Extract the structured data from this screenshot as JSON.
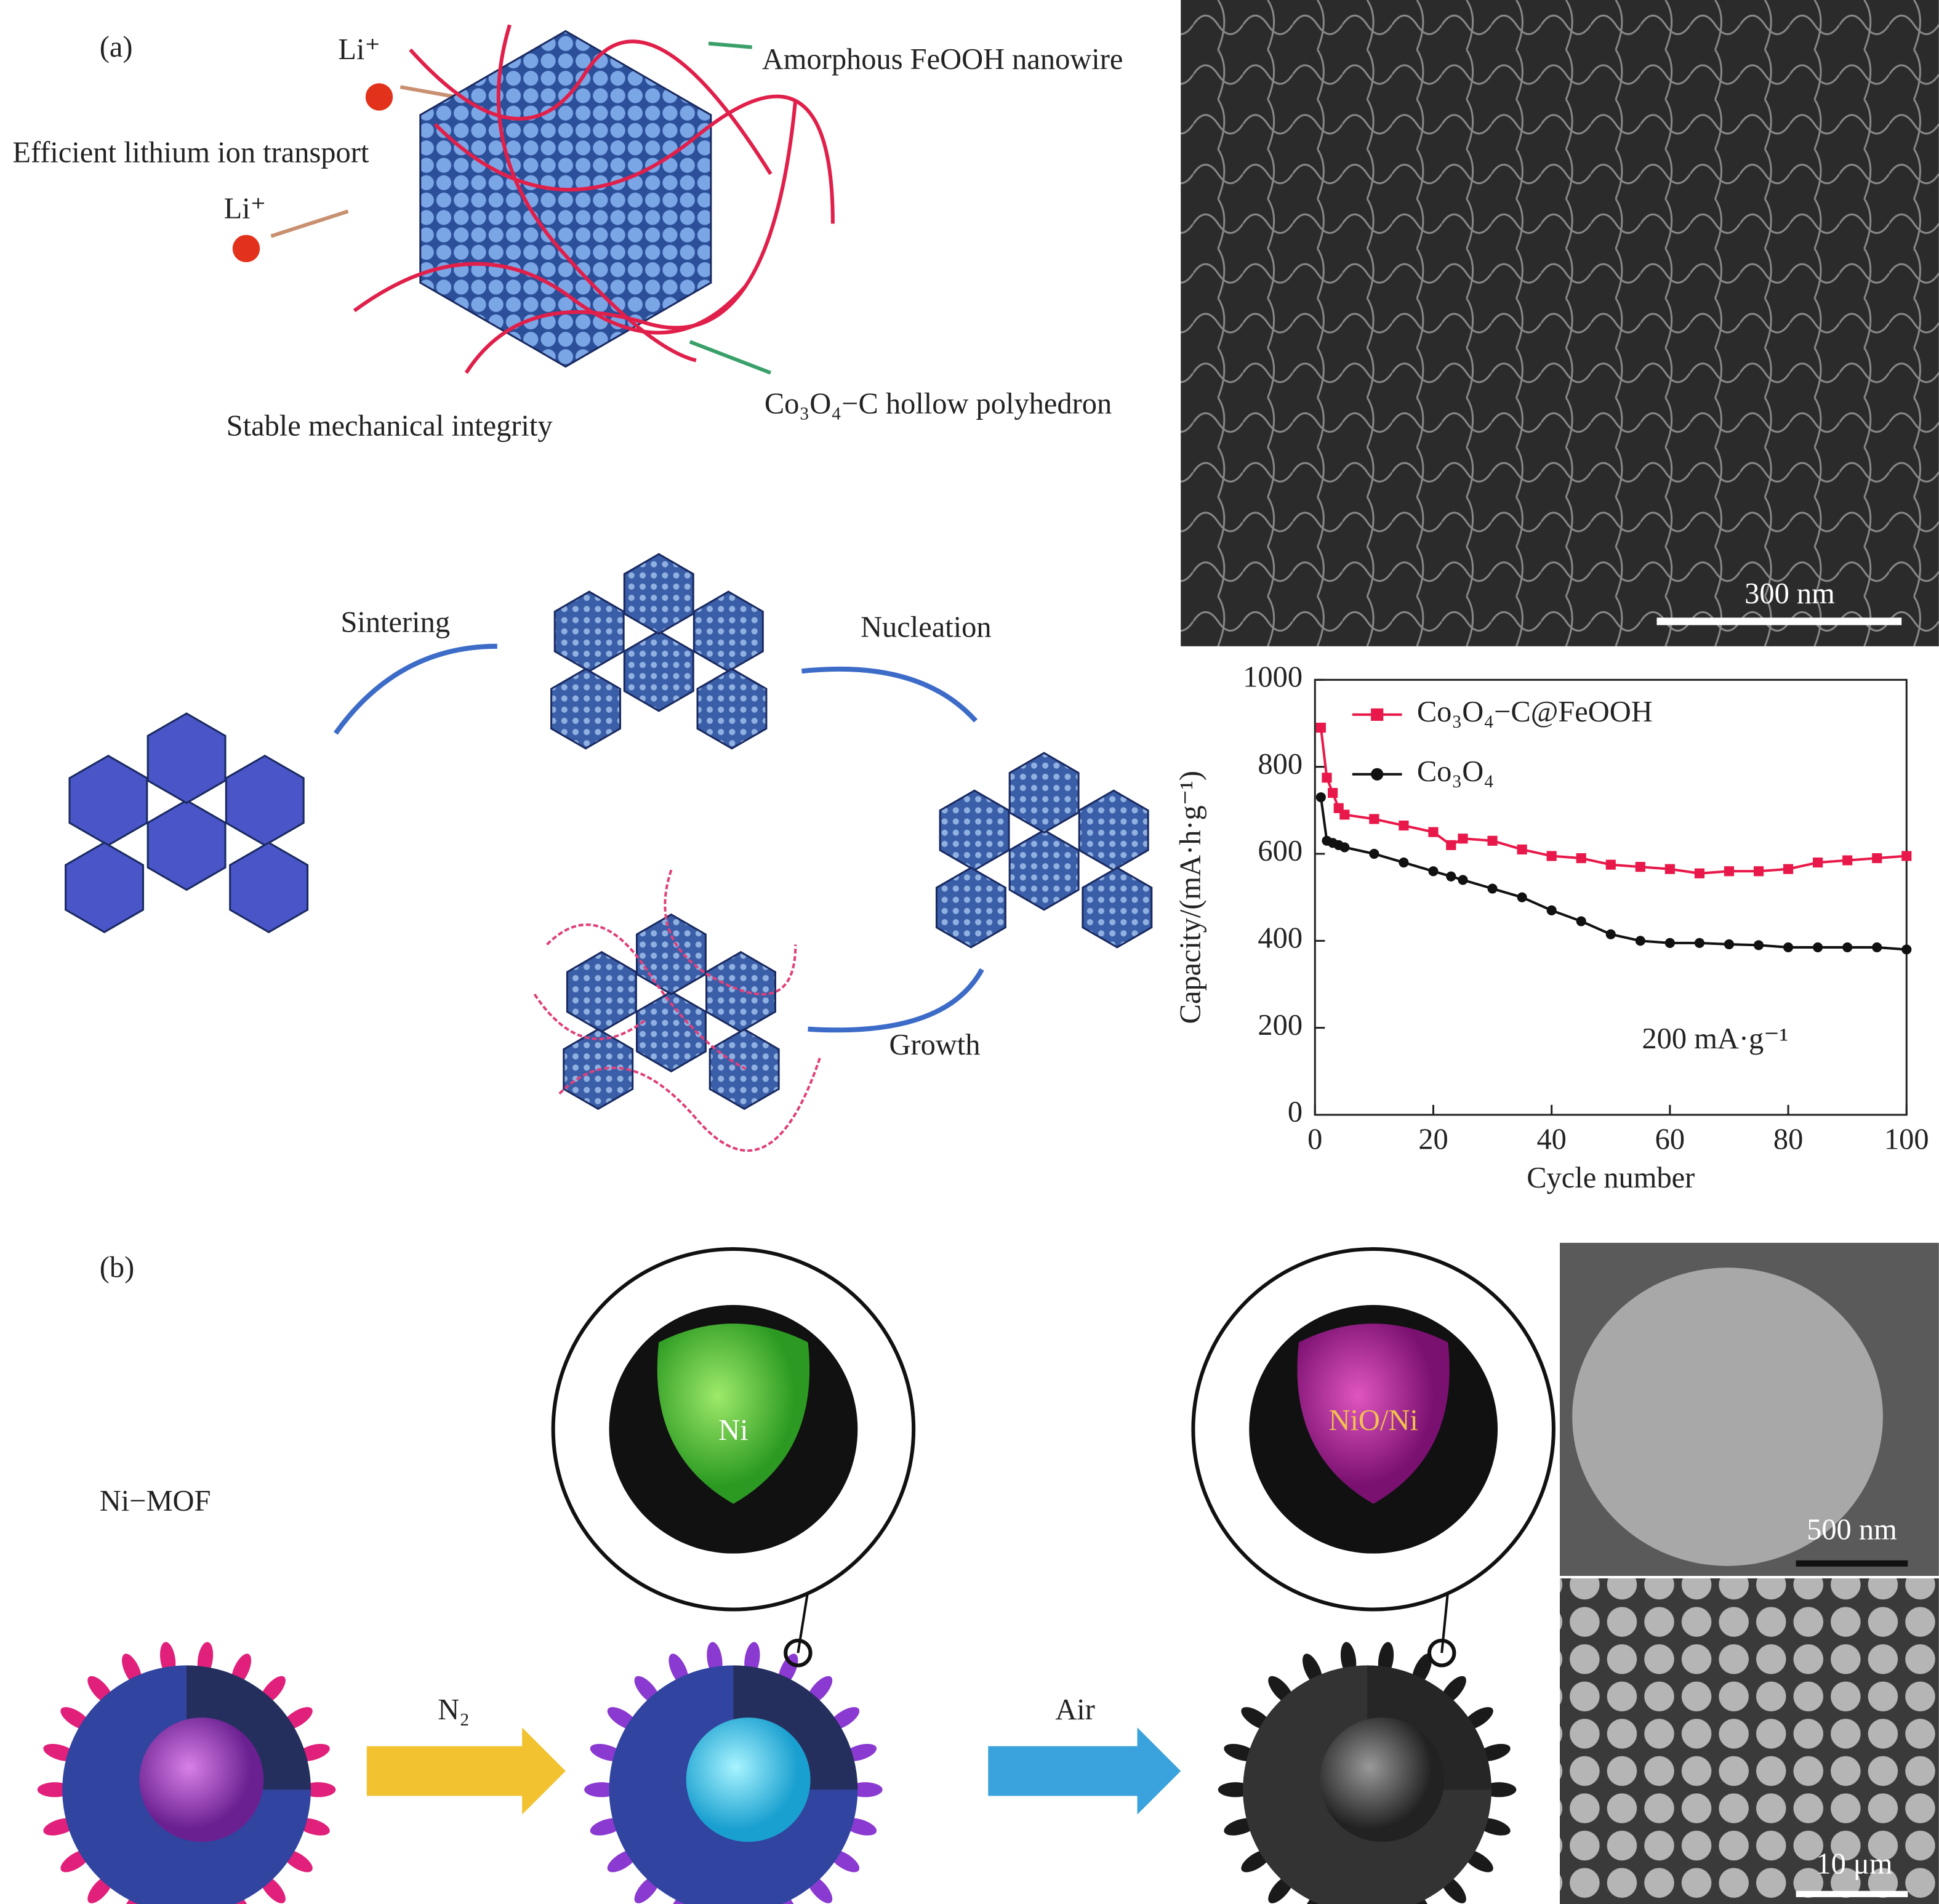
{
  "panel_a": {
    "label": "(a)",
    "li_ion": [
      "Li⁺",
      "Li⁺"
    ],
    "nanowire": "Amorphous FeOOH nanowire",
    "transport": "Efficient lithium ion transport",
    "integrity": "Stable mechanical integrity",
    "polyhedron": "Co₃O₄−C hollow polyhedron",
    "steps": [
      "Sintering",
      "Nucleation",
      "Growth"
    ],
    "sem_scale": "300 nm"
  },
  "chart_data": {
    "type": "line",
    "x_label": "Cycle number",
    "y_label": "Capacity/(mA·h·g⁻¹)",
    "annotation": "200 mA·g⁻¹",
    "x": [
      1,
      2,
      3,
      4,
      5,
      10,
      15,
      20,
      23,
      25,
      30,
      35,
      40,
      45,
      50,
      55,
      60,
      65,
      70,
      75,
      80,
      85,
      90,
      95,
      100
    ],
    "series": [
      {
        "name": "Co₃O₄−C@FeOOH",
        "color": "#e8194a",
        "marker": "square",
        "values": [
          890,
          775,
          740,
          705,
          690,
          680,
          665,
          650,
          620,
          635,
          630,
          610,
          595,
          590,
          575,
          570,
          565,
          555,
          560,
          560,
          565,
          580,
          585,
          590,
          595
        ]
      },
      {
        "name": "Co₃O₄",
        "color": "#111111",
        "marker": "circle",
        "values": [
          730,
          630,
          625,
          620,
          615,
          600,
          580,
          560,
          548,
          540,
          520,
          500,
          470,
          445,
          415,
          400,
          395,
          395,
          392,
          390,
          385,
          385,
          385,
          385,
          380
        ]
      }
    ],
    "xlim": [
      0,
      100
    ],
    "xticks": [
      0,
      20,
      40,
      60,
      80,
      100
    ],
    "ylim": [
      0,
      1000
    ],
    "yticks": [
      0,
      200,
      400,
      600,
      800,
      1000
    ],
    "legend": "top-left"
  },
  "panel_b": {
    "label": "(b)",
    "precursor": "Ni−MOF",
    "core_1": "Ni",
    "core_2": "NiO/Ni",
    "step_1": "N₂",
    "step_2": "Air",
    "sem_scale_1": "500 nm",
    "sem_scale_2": "10 μm"
  }
}
